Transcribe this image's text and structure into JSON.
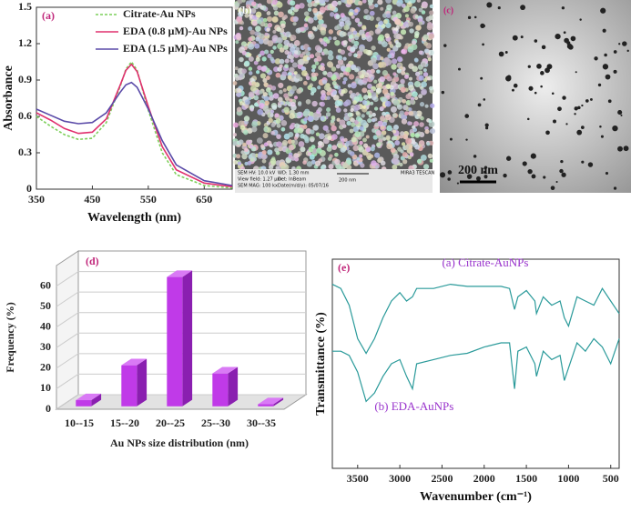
{
  "chart_data": [
    {
      "type": "line",
      "panel_label": "(a)",
      "x_label": "Wavelength (nm)",
      "y_label": "Absorbance",
      "x": [
        350,
        375,
        400,
        425,
        450,
        475,
        500,
        510,
        520,
        530,
        550,
        575,
        600,
        650,
        700
      ],
      "series": [
        {
          "name": "Citrate-Au NPs",
          "color": "#7ccf5a",
          "dash": true,
          "values": [
            0.6,
            0.52,
            0.45,
            0.41,
            0.42,
            0.55,
            0.85,
            0.99,
            1.05,
            0.98,
            0.65,
            0.3,
            0.12,
            0.03,
            0.01
          ]
        },
        {
          "name": "EDA (0.8 μM)-Au NPs",
          "color": "#e0306e",
          "values": [
            0.63,
            0.57,
            0.5,
            0.46,
            0.47,
            0.58,
            0.86,
            0.98,
            1.03,
            0.97,
            0.68,
            0.35,
            0.16,
            0.05,
            0.02
          ]
        },
        {
          "name": "EDA (1.5 μM)-Au NPs",
          "color": "#5a4aa8",
          "values": [
            0.66,
            0.61,
            0.56,
            0.54,
            0.55,
            0.63,
            0.8,
            0.86,
            0.88,
            0.84,
            0.66,
            0.4,
            0.2,
            0.07,
            0.03
          ]
        }
      ],
      "xlim": [
        350,
        700
      ],
      "xticks": [
        350,
        450,
        550,
        650
      ],
      "ylim": [
        0,
        1.5
      ],
      "yticks": [
        0,
        0.3,
        0.6,
        0.9,
        1.2,
        1.5
      ],
      "legend": "top-right"
    },
    {
      "type": "bar3d",
      "panel_label": "(d)",
      "x_label": "Au NPs size distribution (nm)",
      "y_label": "Frequency (%)",
      "categories": [
        "10--15",
        "15--20",
        "20--25",
        "25--30",
        "30--35"
      ],
      "values": [
        3,
        20,
        63,
        16,
        1
      ],
      "color": "#c03ae8",
      "ylim": [
        0,
        70
      ],
      "yticks": [
        0,
        10,
        20,
        30,
        40,
        50,
        60
      ]
    },
    {
      "type": "line",
      "panel_label": "(e)",
      "x_label": "Wavenumber (cm⁻¹)",
      "y_label": "Transmittance (%)",
      "x": [
        3800,
        3700,
        3600,
        3500,
        3400,
        3300,
        3200,
        3100,
        3000,
        2920,
        2850,
        2800,
        2600,
        2400,
        2200,
        2000,
        1800,
        1700,
        1640,
        1600,
        1500,
        1400,
        1380,
        1300,
        1200,
        1100,
        1050,
        1000,
        900,
        800,
        700,
        600,
        500,
        400
      ],
      "series": [
        {
          "name": "(a) Citrate-AuNPs",
          "color": "#2a9a9a",
          "values": [
            88,
            86,
            78,
            62,
            55,
            62,
            72,
            80,
            84,
            80,
            82,
            86,
            86,
            88,
            87,
            87,
            87,
            86,
            76,
            82,
            85,
            80,
            74,
            82,
            78,
            80,
            72,
            68,
            82,
            80,
            78,
            86,
            80,
            74
          ]
        },
        {
          "name": "(b) EDA-AuNPs",
          "color": "#2a9a9a",
          "values": [
            56,
            56,
            54,
            46,
            32,
            36,
            44,
            50,
            52,
            44,
            38,
            50,
            52,
            54,
            55,
            58,
            60,
            60,
            38,
            56,
            58,
            50,
            44,
            56,
            52,
            54,
            42,
            48,
            60,
            56,
            62,
            58,
            50,
            62
          ]
        }
      ],
      "xlim": [
        3800,
        400
      ],
      "xticks": [
        3500,
        3000,
        2500,
        2000,
        1500,
        1000,
        500
      ],
      "ylim": [
        0,
        100
      ],
      "legend": "inline"
    }
  ],
  "images": {
    "b": {
      "panel_label": "(b)",
      "info": [
        "SEM HV: 10.0 kV",
        "WD: 1.30 mm",
        "View field: 1.27 μm",
        "Det: InBeam",
        "SEM MAG: 100 kx",
        "Date(m/d/y): 05/07/16",
        "MIRA3 TESCAN"
      ],
      "scale": "200 nm"
    },
    "c": {
      "panel_label": "(c)",
      "scale": "200 nm"
    }
  }
}
